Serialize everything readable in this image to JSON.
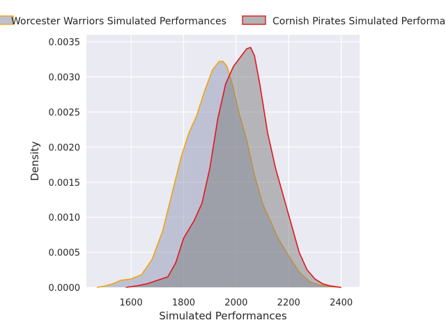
{
  "chart_data": {
    "type": "area",
    "xlabel": "Simulated Performances",
    "ylabel": "Density",
    "xlim": [
      1430,
      2470
    ],
    "ylim": [
      0,
      0.0036
    ],
    "grid": true,
    "legend_position": "top",
    "x_ticks": [
      "1600",
      "1800",
      "2000",
      "2200",
      "2400"
    ],
    "x_tick_values": [
      1600,
      1800,
      2000,
      2200,
      2400
    ],
    "y_ticks": [
      "0.0000",
      "0.0005",
      "0.0010",
      "0.0015",
      "0.0020",
      "0.0025",
      "0.0030",
      "0.0035"
    ],
    "y_tick_values": [
      0,
      0.0005,
      0.001,
      0.0015,
      0.002,
      0.0025,
      0.003,
      0.0035
    ],
    "series": [
      {
        "name": "Worcester Warriors Simulated Performances",
        "line_color": "#f0a30a",
        "fill_color": "#8f98b4",
        "x": [
          1470,
          1500,
          1530,
          1560,
          1600,
          1640,
          1680,
          1720,
          1760,
          1790,
          1820,
          1850,
          1880,
          1910,
          1935,
          1950,
          1965,
          1985,
          2010,
          2040,
          2070,
          2100,
          2130,
          2160,
          2200,
          2240,
          2280,
          2320,
          2360,
          2400
        ],
        "values": [
          0.0,
          2e-05,
          5e-05,
          0.0001,
          0.00012,
          0.00018,
          0.0004,
          0.0008,
          0.0014,
          0.00185,
          0.0022,
          0.00245,
          0.0028,
          0.0031,
          0.00322,
          0.00322,
          0.00315,
          0.0029,
          0.0025,
          0.0021,
          0.0016,
          0.0012,
          0.00095,
          0.0007,
          0.00045,
          0.00022,
          8e-05,
          3e-05,
          1e-05,
          0.0
        ]
      },
      {
        "name": "Cornish Pirates Simulated Performances",
        "line_color": "#e0161b",
        "fill_color": "#808080",
        "x": [
          1580,
          1620,
          1660,
          1700,
          1740,
          1770,
          1800,
          1840,
          1870,
          1900,
          1930,
          1960,
          1990,
          2020,
          2040,
          2055,
          2070,
          2090,
          2120,
          2150,
          2180,
          2210,
          2240,
          2270,
          2300,
          2330,
          2360,
          2400
        ],
        "values": [
          0.0,
          2e-05,
          5e-05,
          0.0001,
          0.00015,
          0.00035,
          0.0007,
          0.00095,
          0.0012,
          0.0017,
          0.0024,
          0.0029,
          0.00315,
          0.0033,
          0.0034,
          0.00342,
          0.0033,
          0.0029,
          0.0022,
          0.0017,
          0.0013,
          0.0009,
          0.0005,
          0.00025,
          0.00012,
          5e-05,
          2e-05,
          0.0
        ]
      }
    ]
  }
}
